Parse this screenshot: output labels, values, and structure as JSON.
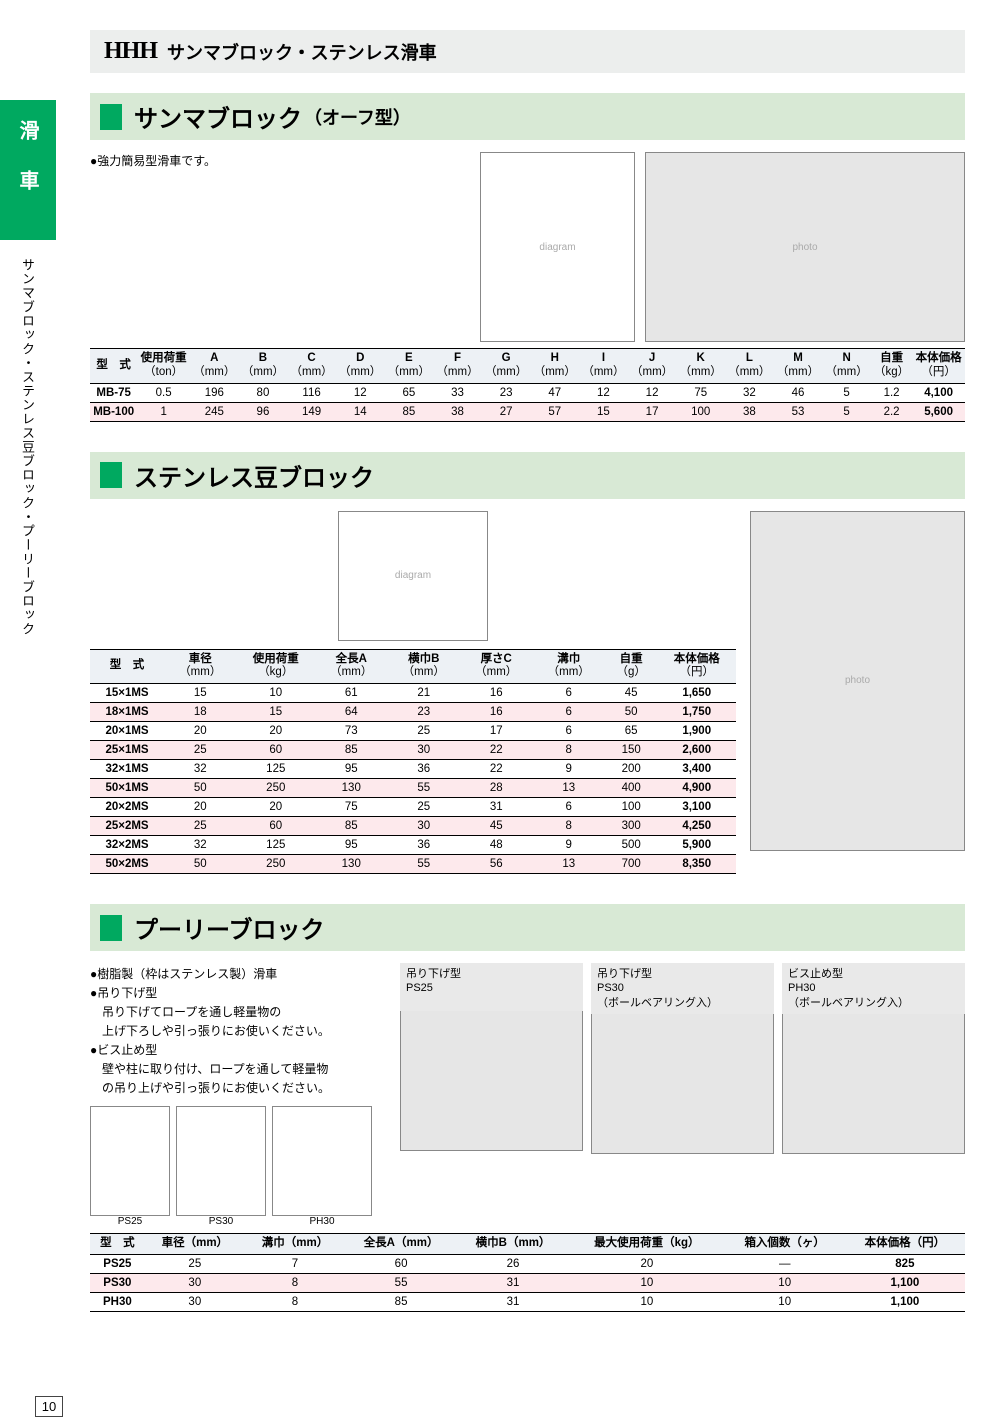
{
  "header": {
    "logo": "HHH",
    "title": "サンマブロック・ステンレス滑車"
  },
  "sideTab": {
    "category": "滑車",
    "breadcrumb": "サンマブロック・ステンレス豆ブロック・プーリーブロック"
  },
  "pageNumber": "10",
  "section1": {
    "titleMain": "サンマブロック",
    "titleSub": "（オーフ型）",
    "desc1": "●強力簡易型滑車です。",
    "table": {
      "headers": [
        {
          "l1": "型　式",
          "l2": ""
        },
        {
          "l1": "使用荷重",
          "l2": "（ton）"
        },
        {
          "l1": "A",
          "l2": "（mm）"
        },
        {
          "l1": "B",
          "l2": "（mm）"
        },
        {
          "l1": "C",
          "l2": "（mm）"
        },
        {
          "l1": "D",
          "l2": "（mm）"
        },
        {
          "l1": "E",
          "l2": "（mm）"
        },
        {
          "l1": "F",
          "l2": "（mm）"
        },
        {
          "l1": "G",
          "l2": "（mm）"
        },
        {
          "l1": "H",
          "l2": "（mm）"
        },
        {
          "l1": "I",
          "l2": "（mm）"
        },
        {
          "l1": "J",
          "l2": "（mm）"
        },
        {
          "l1": "K",
          "l2": "（mm）"
        },
        {
          "l1": "L",
          "l2": "（mm）"
        },
        {
          "l1": "M",
          "l2": "（mm）"
        },
        {
          "l1": "N",
          "l2": "（mm）"
        },
        {
          "l1": "自重",
          "l2": "（kg）"
        },
        {
          "l1": "本体価格",
          "l2": "（円）"
        }
      ],
      "rows": [
        [
          "MB-75",
          "0.5",
          "196",
          "80",
          "116",
          "12",
          "65",
          "33",
          "23",
          "47",
          "12",
          "12",
          "75",
          "32",
          "46",
          "5",
          "1.2",
          "4,100"
        ],
        [
          "MB-100",
          "1",
          "245",
          "96",
          "149",
          "14",
          "85",
          "38",
          "27",
          "57",
          "15",
          "17",
          "100",
          "38",
          "53",
          "5",
          "2.2",
          "5,600"
        ]
      ]
    }
  },
  "section2": {
    "titleMain": "ステンレス豆ブロック",
    "table": {
      "headers": [
        {
          "l1": "型　式",
          "l2": ""
        },
        {
          "l1": "車径",
          "l2": "（mm）"
        },
        {
          "l1": "使用荷重",
          "l2": "（kg）"
        },
        {
          "l1": "全長A",
          "l2": "（mm）"
        },
        {
          "l1": "横巾B",
          "l2": "（mm）"
        },
        {
          "l1": "厚さC",
          "l2": "（mm）"
        },
        {
          "l1": "溝巾",
          "l2": "（mm）"
        },
        {
          "l1": "自重",
          "l2": "（g）"
        },
        {
          "l1": "本体価格",
          "l2": "（円）"
        }
      ],
      "rows": [
        [
          "15×1MS",
          "15",
          "10",
          "61",
          "21",
          "16",
          "6",
          "45",
          "1,650"
        ],
        [
          "18×1MS",
          "18",
          "15",
          "64",
          "23",
          "16",
          "6",
          "50",
          "1,750"
        ],
        [
          "20×1MS",
          "20",
          "20",
          "73",
          "25",
          "17",
          "6",
          "65",
          "1,900"
        ],
        [
          "25×1MS",
          "25",
          "60",
          "85",
          "30",
          "22",
          "8",
          "150",
          "2,600"
        ],
        [
          "32×1MS",
          "32",
          "125",
          "95",
          "36",
          "22",
          "9",
          "200",
          "3,400"
        ],
        [
          "50×1MS",
          "50",
          "250",
          "130",
          "55",
          "28",
          "13",
          "400",
          "4,900"
        ],
        [
          "20×2MS",
          "20",
          "20",
          "75",
          "25",
          "31",
          "6",
          "100",
          "3,100"
        ],
        [
          "25×2MS",
          "25",
          "60",
          "85",
          "30",
          "45",
          "8",
          "300",
          "4,250"
        ],
        [
          "32×2MS",
          "32",
          "125",
          "95",
          "36",
          "48",
          "9",
          "500",
          "5,900"
        ],
        [
          "50×2MS",
          "50",
          "250",
          "130",
          "55",
          "56",
          "13",
          "700",
          "8,350"
        ]
      ]
    }
  },
  "section3": {
    "titleMain": "プーリーブロック",
    "desc": {
      "l1": "●樹脂製（枠はステンレス製）滑車",
      "l2": "●吊り下げ型",
      "l3": "吊り下げてロープを通し軽量物の",
      "l4": "上げ下ろしや引っ張りにお使いください。",
      "l5": "●ビス止め型",
      "l6": "壁や柱に取り付け、ロープを通して軽量物",
      "l7": "の吊り上げや引っ張りにお使いください。"
    },
    "photos": {
      "p1l1": "吊り下げ型",
      "p1l2": "PS25",
      "p2l1": "吊り下げ型",
      "p2l2": "PS30",
      "p2l3": "（ボールベアリング入）",
      "p3l1": "ビス止め型",
      "p3l2": "PH30",
      "p3l3": "（ボールベアリング入）"
    },
    "diagLabels": {
      "d1": "PS25",
      "d2": "PS30",
      "d3": "PH30"
    },
    "table": {
      "headers": [
        {
          "l1": "型　式",
          "l2": ""
        },
        {
          "l1": "車径（mm）",
          "l2": ""
        },
        {
          "l1": "溝巾（mm）",
          "l2": ""
        },
        {
          "l1": "全長A（mm）",
          "l2": ""
        },
        {
          "l1": "横巾B（mm）",
          "l2": ""
        },
        {
          "l1": "最大使用荷重（kg）",
          "l2": ""
        },
        {
          "l1": "箱入個数（ヶ）",
          "l2": ""
        },
        {
          "l1": "本体価格（円）",
          "l2": ""
        }
      ],
      "rows": [
        [
          "PS25",
          "25",
          "7",
          "60",
          "26",
          "20",
          "—",
          "825"
        ],
        [
          "PS30",
          "30",
          "8",
          "55",
          "31",
          "10",
          "10",
          "1,100"
        ],
        [
          "PH30",
          "30",
          "8",
          "85",
          "31",
          "10",
          "10",
          "1,100"
        ]
      ]
    }
  }
}
